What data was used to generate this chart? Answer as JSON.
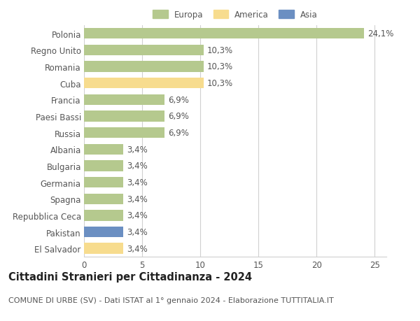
{
  "categories": [
    "El Salvador",
    "Pakistan",
    "Repubblica Ceca",
    "Spagna",
    "Germania",
    "Bulgaria",
    "Albania",
    "Russia",
    "Paesi Bassi",
    "Francia",
    "Cuba",
    "Romania",
    "Regno Unito",
    "Polonia"
  ],
  "values": [
    3.4,
    3.4,
    3.4,
    3.4,
    3.4,
    3.4,
    3.4,
    6.9,
    6.9,
    6.9,
    10.3,
    10.3,
    10.3,
    24.1
  ],
  "labels": [
    "3,4%",
    "3,4%",
    "3,4%",
    "3,4%",
    "3,4%",
    "3,4%",
    "3,4%",
    "6,9%",
    "6,9%",
    "6,9%",
    "10,3%",
    "10,3%",
    "10,3%",
    "24,1%"
  ],
  "colors": [
    "#f7dc8e",
    "#6b8fc2",
    "#b5c98e",
    "#b5c98e",
    "#b5c98e",
    "#b5c98e",
    "#b5c98e",
    "#b5c98e",
    "#b5c98e",
    "#b5c98e",
    "#f7dc8e",
    "#b5c98e",
    "#b5c98e",
    "#b5c98e"
  ],
  "legend_labels": [
    "Europa",
    "America",
    "Asia"
  ],
  "legend_colors": [
    "#b5c98e",
    "#f7dc8e",
    "#6b8fc2"
  ],
  "title_bold": "Cittadini Stranieri per Cittadinanza - 2024",
  "subtitle": "COMUNE DI URBE (SV) - Dati ISTAT al 1° gennaio 2024 - Elaborazione TUTTITALIA.IT",
  "xlim": [
    0,
    26
  ],
  "xticks": [
    0,
    5,
    10,
    15,
    20,
    25
  ],
  "background_color": "#ffffff",
  "bar_height": 0.65,
  "grid_color": "#d0d0d0",
  "label_fontsize": 8.5,
  "tick_fontsize": 8.5,
  "title_fontsize": 10.5,
  "subtitle_fontsize": 8
}
